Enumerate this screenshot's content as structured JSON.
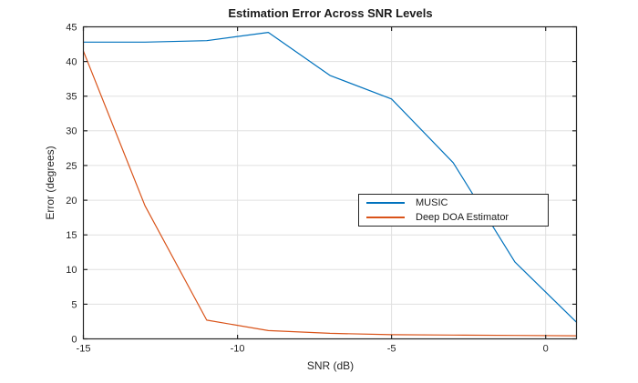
{
  "colors": {
    "grid": "#e0e0e0",
    "axis": "#262626",
    "text": "#262626",
    "background": "#ffffff",
    "legend_border": "#262626"
  },
  "chart_data": {
    "type": "line",
    "title": "Estimation Error Across SNR Levels",
    "xlabel": "SNR (dB)",
    "ylabel": "Error (degrees)",
    "xlim": [
      -15,
      1
    ],
    "ylim": [
      0,
      45
    ],
    "xticks": [
      -15,
      -10,
      -5,
      0
    ],
    "yticks": [
      0,
      5,
      10,
      15,
      20,
      25,
      30,
      35,
      40,
      45
    ],
    "grid": true,
    "box": true,
    "tick_direction": "in",
    "legend_position": "inside-middle-right",
    "x": [
      -15,
      -13,
      -11,
      -9,
      -7,
      -5,
      -3,
      -1,
      1
    ],
    "series": [
      {
        "name": "MUSIC",
        "color": "#0072BD",
        "values": [
          42.8,
          42.8,
          43.0,
          44.2,
          38.0,
          34.6,
          25.4,
          11.1,
          2.4
        ]
      },
      {
        "name": "Deep DOA Estimator",
        "color": "#D95319",
        "values": [
          41.5,
          19.2,
          2.7,
          1.2,
          0.8,
          0.6,
          0.55,
          0.5,
          0.45
        ]
      }
    ]
  }
}
